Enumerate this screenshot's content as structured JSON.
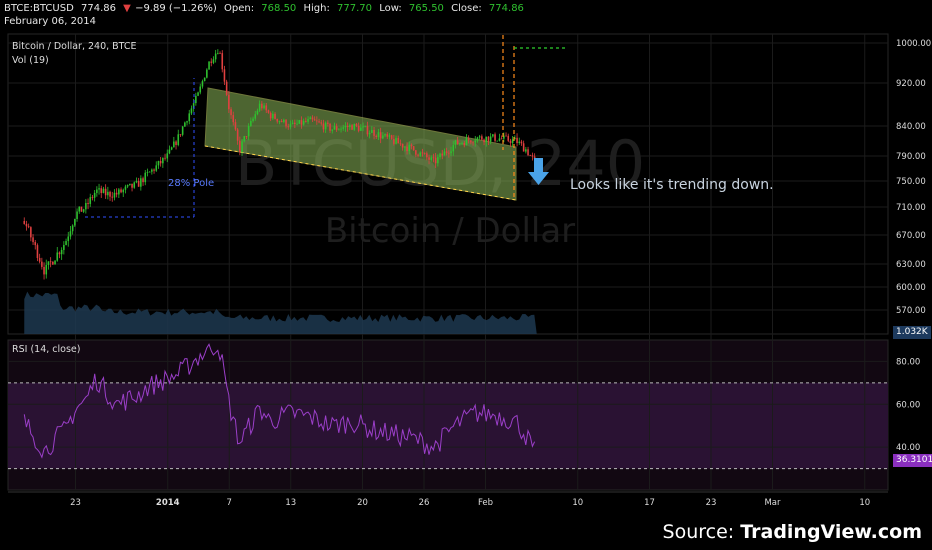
{
  "header": {
    "symbol": "BTCE:BTCUSD",
    "last": "774.86",
    "arrow": "▼",
    "change": "−9.89 (−1.26%)",
    "open_label": "Open:",
    "open": "768.50",
    "high_label": "High:",
    "high": "777.70",
    "low_label": "Low:",
    "low": "765.50",
    "close_label": "Close:",
    "close": "774.86",
    "date": "February 06, 2014"
  },
  "legend": {
    "main": "Bitcoin / Dollar, 240, BTCE",
    "vol": "Vol (19)",
    "rsi": "RSI (14, close)"
  },
  "watermark": {
    "symbol": "BTCUSD, 240",
    "name": "Bitcoin / Dollar"
  },
  "annotations": {
    "pole": "28% Pole",
    "comment": "Looks like it's trending down."
  },
  "tags": {
    "volume": "1.032K",
    "rsi": "36.3101"
  },
  "source": {
    "prefix": "Source: ",
    "brand": "TradingView.com"
  },
  "colors": {
    "up": "#2fc02f",
    "down": "#e04040",
    "channel_fill": "#8db85a",
    "volume": "#1d3850",
    "rsi_line": "#9b3fc9",
    "rsi_band": "#2a1233",
    "orange": "#ff8c1a",
    "blue_arrow": "#4aa3e8"
  },
  "chart_data": [
    {
      "type": "candlestick",
      "title": "Bitcoin / Dollar, 240, BTCE",
      "ylim": [
        550,
        1010
      ],
      "y_ticks": [
        1000,
        920,
        840,
        790,
        750,
        710,
        670,
        630,
        600,
        570
      ],
      "x_ticks": [
        "23",
        "2014",
        "7",
        "13",
        "20",
        "26",
        "Feb",
        "10",
        "17",
        "23",
        "Mar",
        "10"
      ],
      "close_path": [
        [
          "Dec 18",
          690
        ],
        [
          "Dec 19",
          655
        ],
        [
          "Dec 20",
          620
        ],
        [
          "Dec 21",
          640
        ],
        [
          "Dec 22",
          660
        ],
        [
          "Dec 23",
          700
        ],
        [
          "Dec 24",
          710
        ],
        [
          "Dec 25",
          735
        ],
        [
          "Dec 26",
          730
        ],
        [
          "Dec 27",
          730
        ],
        [
          "Dec 28",
          738
        ],
        [
          "Dec 29",
          744
        ],
        [
          "Dec 30",
          760
        ],
        [
          "Dec 31",
          775
        ],
        [
          "Jan 1",
          790
        ],
        [
          "Jan 2",
          820
        ],
        [
          "Jan 3",
          860
        ],
        [
          "Jan 4",
          900
        ],
        [
          "Jan 5",
          960
        ],
        [
          "Jan 6",
          990
        ],
        [
          "Jan 7",
          870
        ],
        [
          "Jan 8",
          800
        ],
        [
          "Jan 9",
          840
        ],
        [
          "Jan 10",
          880
        ],
        [
          "Jan 11",
          860
        ],
        [
          "Jan 12",
          850
        ],
        [
          "Jan 13",
          840
        ],
        [
          "Jan 15",
          850
        ],
        [
          "Jan 17",
          835
        ],
        [
          "Jan 19",
          840
        ],
        [
          "Jan 21",
          830
        ],
        [
          "Jan 23",
          815
        ],
        [
          "Jan 25",
          800
        ],
        [
          "Jan 27",
          780
        ],
        [
          "Jan 29",
          810
        ],
        [
          "Jan 31",
          820
        ],
        [
          "Feb 2",
          820
        ],
        [
          "Feb 4",
          815
        ],
        [
          "Feb 5",
          800
        ],
        [
          "Feb 6",
          774.86
        ]
      ]
    },
    {
      "type": "line",
      "title": "RSI (14, close)",
      "ylim": [
        20,
        90
      ],
      "y_ticks": [
        80,
        60,
        40
      ],
      "bands": [
        30,
        70
      ],
      "last": 36.3101,
      "values": [
        [
          "Dec 18",
          52
        ],
        [
          "Dec 19",
          45
        ],
        [
          "Dec 20",
          38
        ],
        [
          "Dec 21",
          44
        ],
        [
          "Dec 22",
          48
        ],
        [
          "Dec 23",
          58
        ],
        [
          "Dec 24",
          62
        ],
        [
          "Dec 25",
          72
        ],
        [
          "Dec 26",
          66
        ],
        [
          "Dec 27",
          60
        ],
        [
          "Dec 28",
          62
        ],
        [
          "Dec 29",
          64
        ],
        [
          "Dec 30",
          68
        ],
        [
          "Dec 31",
          70
        ],
        [
          "Jan 1",
          72
        ],
        [
          "Jan 2",
          74
        ],
        [
          "Jan 3",
          78
        ],
        [
          "Jan 4",
          82
        ],
        [
          "Jan 5",
          86
        ],
        [
          "Jan 6",
          88
        ],
        [
          "Jan 7",
          60
        ],
        [
          "Jan 8",
          42
        ],
        [
          "Jan 9",
          50
        ],
        [
          "Jan 10",
          58
        ],
        [
          "Jan 11",
          52
        ],
        [
          "Jan 12",
          54
        ],
        [
          "Jan 13",
          56
        ],
        [
          "Jan 15",
          54
        ],
        [
          "Jan 17",
          50
        ],
        [
          "Jan 19",
          52
        ],
        [
          "Jan 21",
          48
        ],
        [
          "Jan 23",
          46
        ],
        [
          "Jan 25",
          44
        ],
        [
          "Jan 27",
          40
        ],
        [
          "Jan 29",
          50
        ],
        [
          "Jan 31",
          56
        ],
        [
          "Feb 2",
          55
        ],
        [
          "Feb 4",
          52
        ],
        [
          "Feb 5",
          45
        ],
        [
          "Feb 6",
          36.31
        ]
      ]
    }
  ]
}
